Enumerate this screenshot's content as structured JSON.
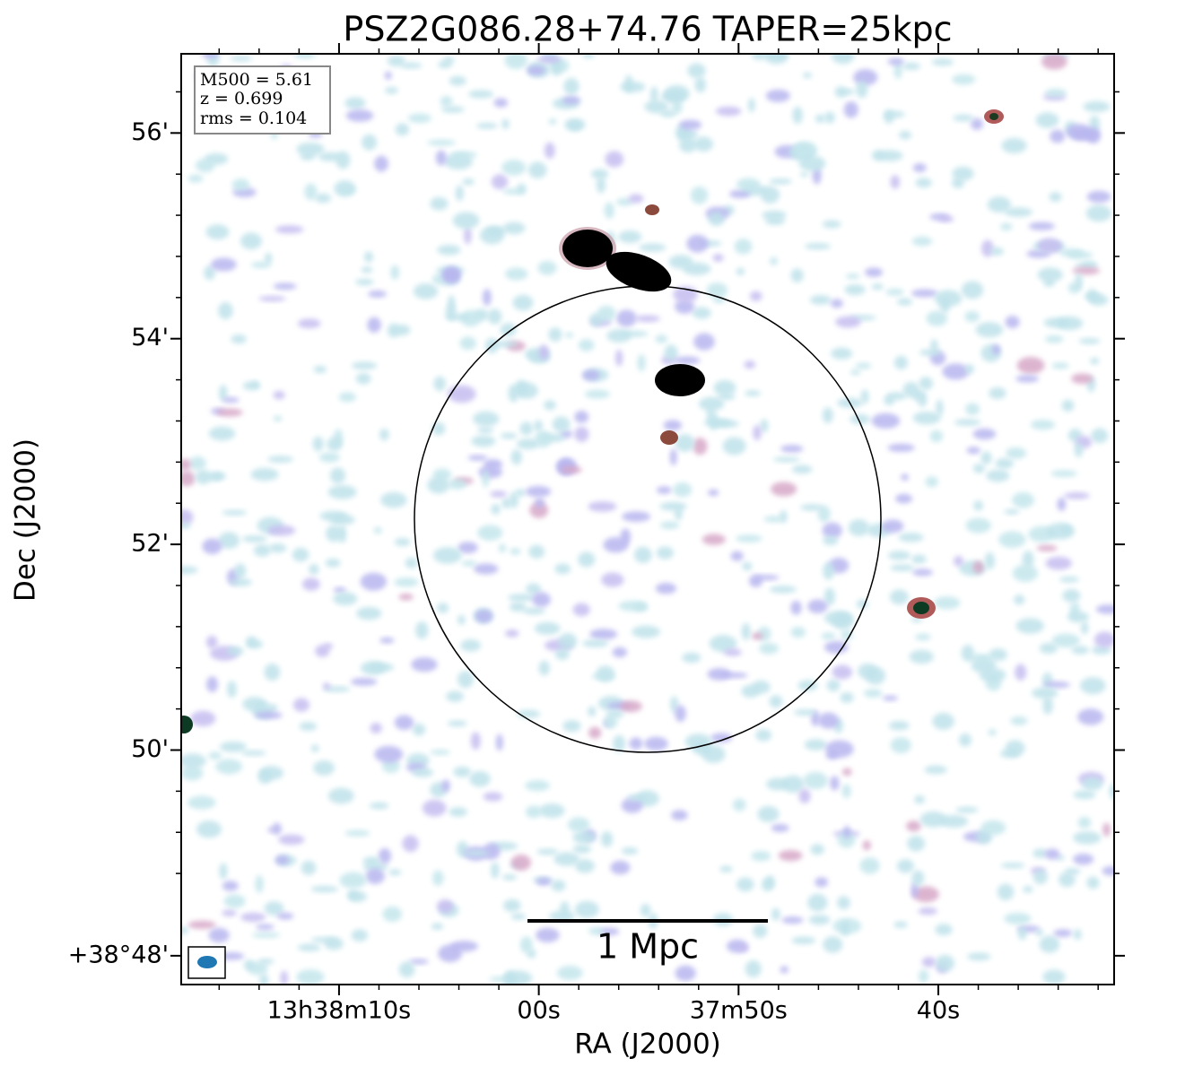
{
  "chart_data": {
    "type": "image",
    "title": "PSZ2G086.28+74.76 TAPER=25kpc",
    "x_label": "RA (J2000)",
    "y_label": "Dec (J2000)",
    "xlim": [
      77.9,
      31.2
    ],
    "ylim": [
      47.72,
      56.77
    ],
    "xticks": [
      {
        "value": 70,
        "label": "13h38m10s"
      },
      {
        "value": 60,
        "label": "00s"
      },
      {
        "value": 50,
        "label": "37m50s"
      },
      {
        "value": 40,
        "label": "40s"
      }
    ],
    "yticks": [
      {
        "value": 48,
        "label": "+38°48'"
      },
      {
        "value": 50,
        "label": "50'"
      },
      {
        "value": 52,
        "label": "52'"
      },
      {
        "value": 54,
        "label": "54'"
      },
      {
        "value": 56,
        "label": "56'"
      }
    ],
    "info": [
      "M500 = 5.61",
      "z = 0.699",
      "rms = 0.104"
    ],
    "scale_bar_label": "1 Mpc"
  }
}
